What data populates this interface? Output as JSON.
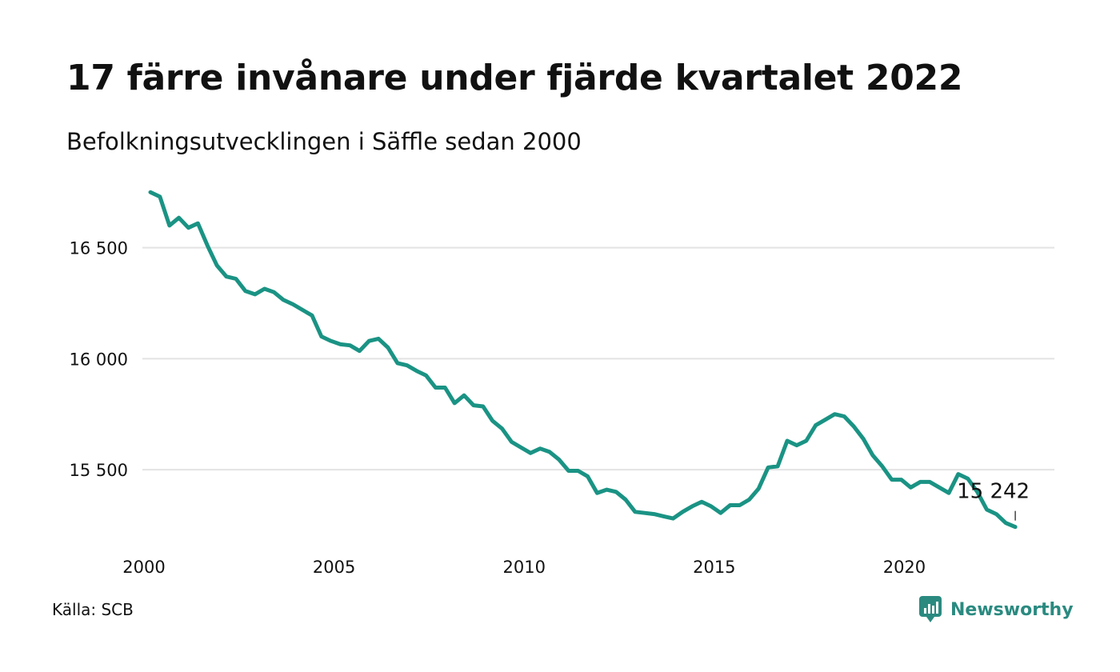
{
  "header": {
    "title": "17 färre invånare under fjärde kvartalet 2022",
    "subtitle": "Befolkningsutvecklingen i Säffle sedan 2000"
  },
  "footer": {
    "source": "Källa: SCB",
    "brand": "Newsworthy"
  },
  "colors": {
    "line": "#1a9384",
    "grid": "#e3e3e3",
    "brand": "#2a8a80"
  },
  "chart_data": {
    "type": "line",
    "x_ticks": [
      2000,
      2005,
      2010,
      2015,
      2020
    ],
    "y_ticks": [
      15500,
      16000,
      16500
    ],
    "y_tick_labels": [
      "15 500",
      "16 000",
      "16 500"
    ],
    "xlim": [
      2000,
      2023
    ],
    "ylim": [
      15230,
      16780
    ],
    "grid": "horizontal",
    "last_label": "15 242",
    "series": [
      {
        "x": [
          2000.0,
          2000.25,
          2000.5,
          2000.75,
          2001.0,
          2001.25,
          2001.5,
          2001.75,
          2002.0,
          2002.25,
          2002.5,
          2002.75,
          2003.0,
          2003.25,
          2003.5,
          2003.75,
          2004.0,
          2004.25,
          2004.5,
          2004.75,
          2005.0,
          2005.25,
          2005.5,
          2005.75,
          2006.0,
          2006.25,
          2006.5,
          2006.75,
          2007.0,
          2007.25,
          2007.5,
          2007.75,
          2008.0,
          2008.25,
          2008.5,
          2008.75,
          2009.0,
          2009.25,
          2009.5,
          2009.75,
          2010.0,
          2010.25,
          2010.5,
          2010.75,
          2011.0,
          2011.25,
          2011.5,
          2011.75,
          2012.0,
          2012.25,
          2012.5,
          2012.75,
          2013.0,
          2013.25,
          2013.5,
          2013.75,
          2014.0,
          2014.25,
          2014.5,
          2014.75,
          2015.0,
          2015.25,
          2015.5,
          2015.75,
          2016.0,
          2016.25,
          2016.5,
          2016.75,
          2017.0,
          2017.25,
          2017.5,
          2017.75,
          2018.0,
          2018.25,
          2018.5,
          2018.75,
          2019.0,
          2019.25,
          2019.5,
          2019.75,
          2020.0,
          2020.25,
          2020.5,
          2020.75,
          2021.0,
          2021.25,
          2021.5,
          2021.75,
          2022.0,
          2022.25,
          2022.5,
          2022.75
        ],
        "y": [
          16750,
          16730,
          16600,
          16635,
          16590,
          16610,
          16510,
          16420,
          16370,
          16360,
          16305,
          16290,
          16315,
          16300,
          16265,
          16245,
          16220,
          16195,
          16100,
          16080,
          16065,
          16060,
          16035,
          16080,
          16090,
          16050,
          15980,
          15970,
          15945,
          15925,
          15870,
          15870,
          15800,
          15835,
          15790,
          15785,
          15720,
          15685,
          15625,
          15600,
          15575,
          15595,
          15580,
          15545,
          15495,
          15495,
          15470,
          15395,
          15410,
          15400,
          15365,
          15310,
          15305,
          15300,
          15290,
          15280,
          15310,
          15335,
          15355,
          15335,
          15305,
          15340,
          15340,
          15365,
          15415,
          15510,
          15515,
          15630,
          15610,
          15630,
          15700,
          15725,
          15750,
          15740,
          15695,
          15640,
          15565,
          15515,
          15455,
          15455,
          15420,
          15445,
          15445,
          15420,
          15395,
          15480,
          15460,
          15400,
          15320,
          15300,
          15260,
          15242
        ]
      }
    ]
  }
}
